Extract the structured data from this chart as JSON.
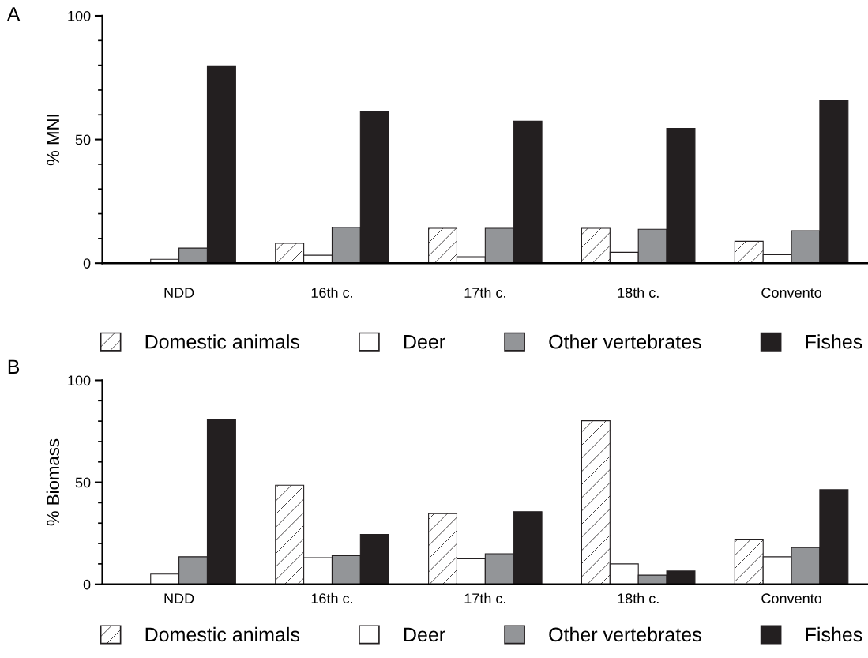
{
  "chart_data": [
    {
      "type": "bar",
      "title": "A",
      "ylabel": "% MNI",
      "categories": [
        "NDD",
        "16th c.",
        "17th c.",
        "18th c.",
        "Convento"
      ],
      "series": [
        {
          "name": "Domestic animals",
          "color": "#ffffff",
          "values": [
            0,
            8.1,
            14.1,
            14.1,
            8.9
          ]
        },
        {
          "name": "Deer",
          "color": "#ffffff",
          "values": [
            1.6,
            3.2,
            2.6,
            4.4,
            3.4
          ]
        },
        {
          "name": "Other vertebrates",
          "color": "#939598",
          "values": [
            6.1,
            14.5,
            14.1,
            13.7,
            13.1
          ]
        },
        {
          "name": "Fishes",
          "color": "#231f20",
          "values": [
            79.8,
            61.4,
            57.4,
            54.5,
            65.9
          ]
        }
      ],
      "ylim": [
        0,
        100
      ],
      "yticks": [
        0,
        {
          "value": 10,
          "label": null
        },
        {
          "value": 20,
          "label": null
        },
        {
          "value": 30,
          "label": null
        },
        {
          "value": 40,
          "label": null
        },
        50,
        {
          "value": 60,
          "label": null
        },
        {
          "value": 70,
          "label": null
        },
        {
          "value": 80,
          "label": null
        },
        {
          "value": 90,
          "label": null
        },
        100
      ],
      "legend": "bottom",
      "grid": false
    },
    {
      "type": "bar",
      "title": "B",
      "ylabel": "% Biomass",
      "categories": [
        "NDD",
        "16th c.",
        "17th c.",
        "18th c.",
        "Convento"
      ],
      "series": [
        {
          "name": "Domestic animals",
          "color": "#ffffff",
          "values": [
            0,
            48.6,
            34.7,
            80.2,
            22.1
          ]
        },
        {
          "name": "Deer",
          "color": "#ffffff",
          "values": [
            5,
            13,
            12.5,
            10,
            13.5
          ]
        },
        {
          "name": "Other vertebrates",
          "color": "#939598",
          "values": [
            13.5,
            14,
            15,
            4.5,
            18
          ]
        },
        {
          "name": "Fishes",
          "color": "#231f20",
          "values": [
            80.9,
            24.5,
            35.6,
            6.5,
            46.4
          ]
        }
      ],
      "ylim": [
        0,
        100
      ],
      "yticks": [
        0,
        {
          "value": 10,
          "label": null
        },
        {
          "value": 20,
          "label": null
        },
        {
          "value": 30,
          "label": null
        },
        {
          "value": 40,
          "label": null
        },
        50,
        {
          "value": 60,
          "label": null
        },
        {
          "value": 70,
          "label": null
        },
        {
          "value": 80,
          "label": null
        },
        {
          "value": 90,
          "label": null
        },
        100
      ],
      "legend": "bottom",
      "grid": false
    }
  ]
}
